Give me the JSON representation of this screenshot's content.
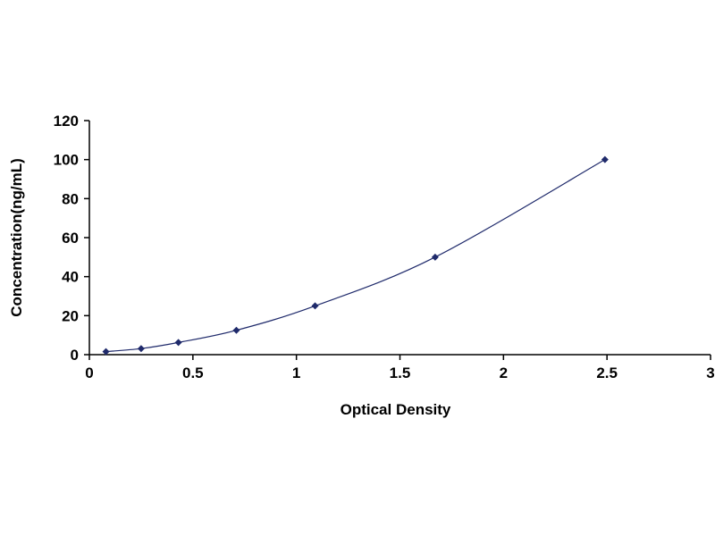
{
  "chart_data": {
    "type": "scatter",
    "title": "",
    "xlabel": "Optical Density",
    "ylabel": "Concentration(ng/mL)",
    "xlim": [
      0,
      3
    ],
    "ylim": [
      0,
      120
    ],
    "x_ticks": [
      0,
      0.5,
      1,
      1.5,
      2,
      2.5,
      3
    ],
    "y_ticks": [
      0,
      20,
      40,
      60,
      80,
      100,
      120
    ],
    "x_tick_labels": [
      "0",
      "0.5",
      "1",
      "1.5",
      "2",
      "2.5",
      "3"
    ],
    "y_tick_labels": [
      "0",
      "20",
      "40",
      "60",
      "80",
      "100",
      "120"
    ],
    "grid": false,
    "legend": "none",
    "fit_curve": true,
    "series": [
      {
        "x": [
          0.08,
          0.25,
          0.43,
          0.71,
          1.09,
          1.67,
          2.49
        ],
        "y": [
          1.56,
          3.12,
          6.25,
          12.5,
          25,
          50,
          100
        ]
      }
    ],
    "colors": {
      "marker": "#1f2a6b",
      "curve": "#1f2a6b"
    }
  }
}
